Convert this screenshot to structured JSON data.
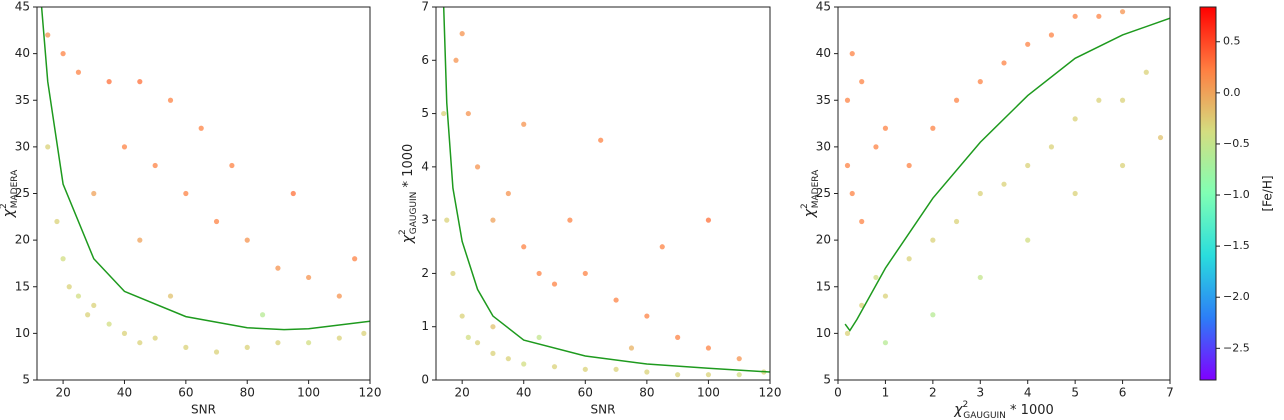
{
  "chart_data": [
    {
      "type": "scatter",
      "xlabel": "SNR",
      "ylabel": {
        "symbol": "χ",
        "sup": "2",
        "sub": "MADERA"
      },
      "xlim": [
        11.5,
        120
      ],
      "xticks": [
        20,
        40,
        60,
        80,
        100,
        120
      ],
      "ylim": [
        5,
        45
      ],
      "yticks": [
        5,
        10,
        15,
        20,
        25,
        30,
        35,
        40,
        45
      ],
      "points": {
        "x": [
          15,
          18,
          20,
          22,
          25,
          28,
          30,
          35,
          40,
          45,
          50,
          60,
          70,
          80,
          90,
          100,
          110,
          118,
          15,
          20,
          25,
          35,
          45,
          55,
          40,
          50,
          60,
          70,
          80,
          90,
          100,
          110,
          30,
          65,
          75,
          95,
          85,
          55,
          45,
          115
        ],
        "y": [
          30,
          22,
          18,
          15,
          14,
          12,
          13,
          11,
          10,
          9,
          9.5,
          8.5,
          8,
          8.5,
          9,
          9,
          9.5,
          10,
          42,
          40,
          38,
          37,
          37,
          35,
          30,
          28,
          25,
          22,
          20,
          17,
          16,
          14,
          25,
          32,
          28,
          25,
          12,
          14,
          20,
          18
        ],
        "c": [
          -0.3,
          -0.3,
          -0.4,
          -0.3,
          -0.4,
          -0.3,
          -0.3,
          -0.4,
          -0.3,
          -0.3,
          -0.3,
          -0.3,
          -0.3,
          -0.3,
          -0.3,
          -0.4,
          -0.3,
          -0.3,
          0.1,
          0.2,
          0.2,
          0.3,
          0.3,
          0.2,
          0.2,
          0.2,
          0.2,
          0.2,
          0.1,
          0.1,
          0.1,
          0.1,
          0.0,
          0.2,
          0.2,
          0.3,
          -0.6,
          -0.2,
          0.0,
          0.2
        ]
      },
      "fit": {
        "color": "#1e9a1e",
        "x": [
          13,
          15,
          20,
          30,
          40,
          60,
          80,
          92,
          100,
          120
        ],
        "y": [
          45,
          37,
          26,
          18,
          14.5,
          11.8,
          10.6,
          10.4,
          10.5,
          11.3
        ]
      }
    },
    {
      "type": "scatter",
      "xlabel": "SNR",
      "ylabel": {
        "symbol": "χ",
        "sup": "2",
        "sub": "GAUGUIN",
        "suffix": " * 1000"
      },
      "xlim": [
        11.5,
        120
      ],
      "xticks": [
        20,
        40,
        60,
        80,
        100,
        120
      ],
      "ylim": [
        0,
        7
      ],
      "yticks": [
        0,
        1,
        2,
        3,
        4,
        5,
        6,
        7
      ],
      "points": {
        "x": [
          14,
          15,
          17,
          20,
          22,
          25,
          30,
          35,
          40,
          50,
          60,
          70,
          80,
          90,
          100,
          110,
          118,
          18,
          22,
          25,
          30,
          35,
          40,
          45,
          50,
          60,
          55,
          70,
          80,
          90,
          100,
          110,
          65,
          85,
          20,
          30,
          45,
          75,
          40,
          100
        ],
        "y": [
          5,
          3,
          2,
          1.2,
          0.8,
          0.7,
          0.5,
          0.4,
          0.3,
          0.25,
          0.2,
          0.2,
          0.15,
          0.1,
          0.1,
          0.1,
          0.15,
          6,
          5,
          4,
          3,
          3.5,
          2.5,
          2,
          1.8,
          2,
          3,
          1.5,
          1.2,
          0.8,
          0.6,
          0.4,
          4.5,
          2.5,
          6.5,
          1,
          0.8,
          0.6,
          4.8,
          3
        ],
        "c": [
          -0.3,
          -0.3,
          -0.3,
          -0.3,
          -0.4,
          -0.3,
          -0.3,
          -0.3,
          -0.4,
          -0.3,
          -0.3,
          -0.3,
          -0.3,
          -0.3,
          -0.3,
          -0.4,
          -0.3,
          0.1,
          0.1,
          0.1,
          0.0,
          0.1,
          0.2,
          0.2,
          0.2,
          0.2,
          0.2,
          0.2,
          0.2,
          0.2,
          0.2,
          0.1,
          0.2,
          0.2,
          0.1,
          -0.2,
          -0.5,
          -0.1,
          0.1,
          0.3
        ]
      },
      "fit": {
        "color": "#1e9a1e",
        "x": [
          14,
          15,
          17,
          20,
          25,
          30,
          40,
          60,
          80,
          100,
          120
        ],
        "y": [
          7,
          5.2,
          3.6,
          2.6,
          1.7,
          1.2,
          0.75,
          0.45,
          0.3,
          0.22,
          0.15
        ]
      }
    },
    {
      "type": "scatter",
      "xlabel": {
        "symbol": "χ",
        "sup": "2",
        "sub": "GAUGUIN",
        "suffix": " * 1000"
      },
      "ylabel": {
        "symbol": "χ",
        "sup": "2",
        "sub": "MADERA"
      },
      "xlim": [
        0,
        7
      ],
      "xticks": [
        0,
        1,
        2,
        3,
        4,
        5,
        6,
        7
      ],
      "ylim": [
        5,
        45
      ],
      "yticks": [
        5,
        10,
        15,
        20,
        25,
        30,
        35,
        40,
        45
      ],
      "points": {
        "x": [
          0.2,
          0.3,
          0.5,
          0.2,
          0.3,
          0.5,
          0.8,
          1,
          1.5,
          2,
          2.5,
          3,
          3.5,
          4,
          4.5,
          5,
          5.5,
          6,
          0.2,
          0.5,
          0.8,
          1,
          1.5,
          2,
          2.5,
          3,
          3.5,
          4,
          4.5,
          5,
          5.5,
          6,
          6.5,
          1,
          2,
          3,
          4,
          5,
          6,
          6.8
        ],
        "y": [
          35,
          40,
          37,
          28,
          25,
          22,
          30,
          32,
          28,
          32,
          35,
          37,
          39,
          41,
          42,
          44,
          44,
          44.5,
          10,
          13,
          16,
          14,
          18,
          20,
          22,
          25,
          26,
          28,
          30,
          33,
          35,
          35,
          38,
          9,
          12,
          16,
          20,
          25,
          28,
          31
        ],
        "c": [
          0.2,
          0.2,
          0.2,
          0.2,
          0.2,
          0.2,
          0.2,
          0.2,
          0.2,
          0.2,
          0.2,
          0.2,
          0.2,
          0.2,
          0.2,
          0.2,
          0.2,
          0.1,
          -0.3,
          -0.3,
          -0.4,
          -0.3,
          -0.3,
          -0.3,
          -0.3,
          -0.3,
          -0.3,
          -0.3,
          -0.3,
          -0.3,
          -0.3,
          -0.3,
          -0.3,
          -0.6,
          -0.6,
          -0.5,
          -0.4,
          -0.3,
          -0.3,
          -0.2
        ]
      },
      "fit": {
        "color": "#1e9a1e",
        "x": [
          0.15,
          0.25,
          0.4,
          1,
          2,
          3,
          4,
          5,
          6,
          7
        ],
        "y": [
          11,
          10.3,
          11.5,
          17,
          24.5,
          30.5,
          35.5,
          39.5,
          42,
          43.8
        ]
      }
    },
    {
      "type": "colorbar",
      "label": "[Fe/H]",
      "lim": [
        -2.81,
        0.84
      ],
      "ticks": [
        {
          "value": -2.5,
          "label": "−2.5"
        },
        {
          "value": -2.0,
          "label": "−2.0"
        },
        {
          "value": -1.5,
          "label": "−1.5"
        },
        {
          "value": -1.0,
          "label": "−1.0"
        },
        {
          "value": -0.5,
          "label": "−0.5"
        },
        {
          "value": 0,
          "label": "0.0"
        },
        0.5
      ],
      "colormap": [
        "#8000ff",
        "#2c7ef7",
        "#2adddd",
        "#80ffb4",
        "#d4dd80",
        "#ff7e41",
        "#ff0000"
      ]
    }
  ]
}
